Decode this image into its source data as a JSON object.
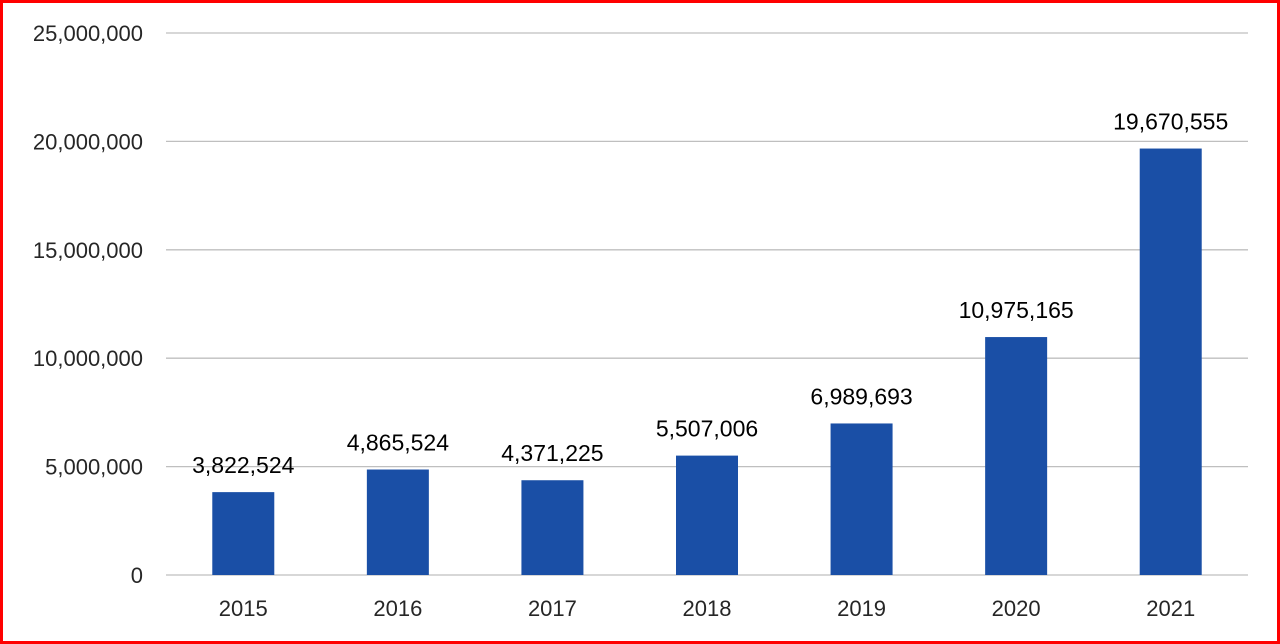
{
  "colors": {
    "frame_border": "#ff0000",
    "bar_fill": "#1a4fa6",
    "gridline": "#bfbfbf",
    "axis_text": "#262626",
    "label_text": "#000000"
  },
  "chart_data": {
    "type": "bar",
    "title": "",
    "xlabel": "",
    "ylabel": "",
    "categories": [
      "2015",
      "2016",
      "2017",
      "2018",
      "2019",
      "2020",
      "2021"
    ],
    "values": [
      3822524,
      4865524,
      4371225,
      5507006,
      6989693,
      10975165,
      19670555
    ],
    "value_labels": [
      "3,822,524",
      "4,865,524",
      "4,371,225",
      "5,507,006",
      "6,989,693",
      "10,975,165",
      "19,670,555"
    ],
    "ylim": [
      0,
      25000000
    ],
    "yticks": [
      0,
      5000000,
      10000000,
      15000000,
      20000000,
      25000000
    ],
    "ytick_labels": [
      "0",
      "5,000,000",
      "10,000,000",
      "15,000,000",
      "20,000,000",
      "25,000,000"
    ],
    "grid": true,
    "legend": "none"
  }
}
